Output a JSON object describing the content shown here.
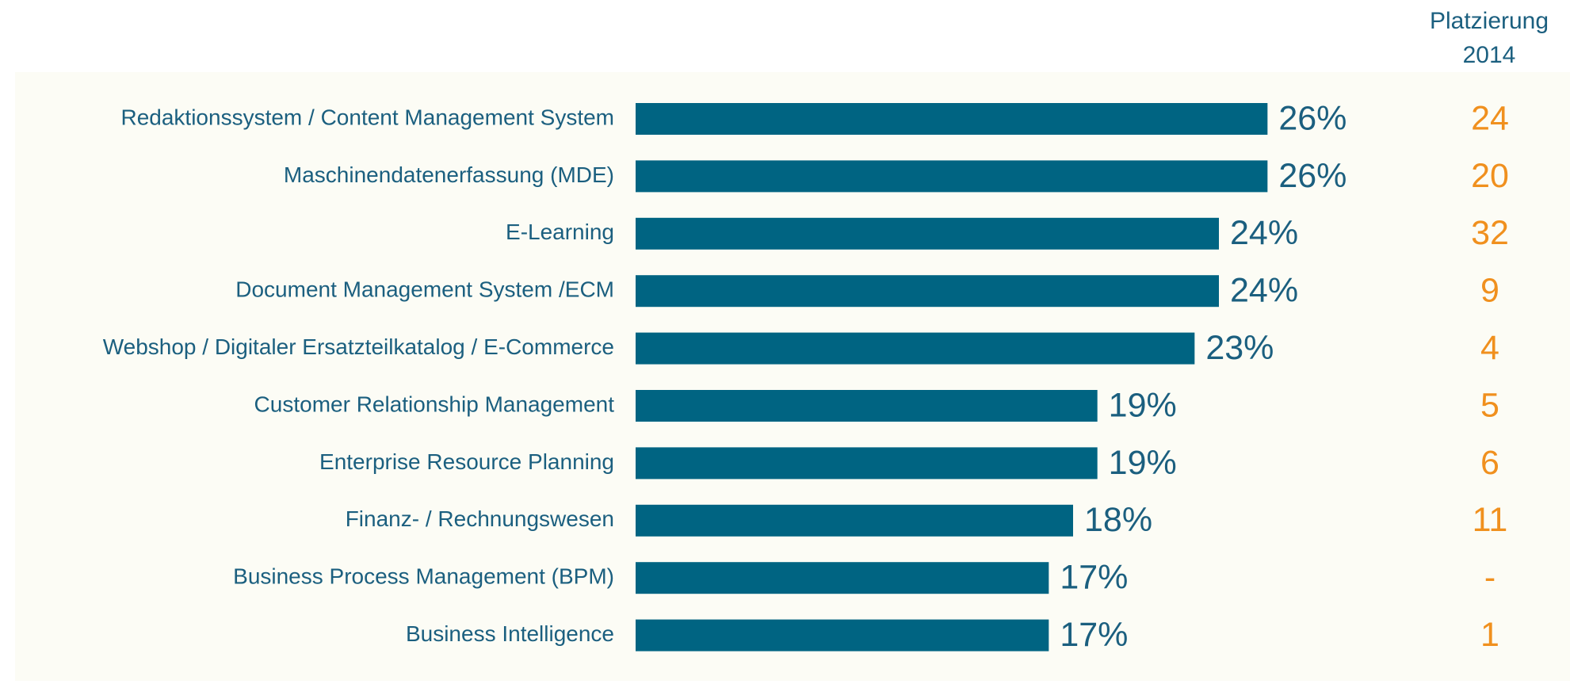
{
  "chart_data": {
    "type": "barh",
    "categories": [
      "Redaktionssystem / Content Management System",
      "Maschinendatenerfassung (MDE)",
      "E-Learning",
      "Document Management System /ECM",
      "Webshop / Digitaler Ersatzteilkatalog / E-Commerce",
      "Customer Relationship Management",
      "Enterprise Resource Planning",
      "Finanz- / Rechnungswesen",
      "Business Process Management (BPM)",
      "Business Intelligence"
    ],
    "values": [
      26,
      26,
      24,
      24,
      23,
      19,
      19,
      18,
      17,
      17
    ],
    "value_labels": [
      "26%",
      "26%",
      "24%",
      "24%",
      "23%",
      "19%",
      "19%",
      "18%",
      "17%",
      "17%"
    ],
    "color": "#006482",
    "xlim": [
      0,
      36
    ],
    "rank_header": [
      "Platzierung",
      "2014"
    ],
    "ranks": [
      "24",
      "20",
      "32",
      "9",
      "4",
      "5",
      "6",
      "11",
      "-",
      "1"
    ],
    "rank_color": "#f0901e"
  }
}
